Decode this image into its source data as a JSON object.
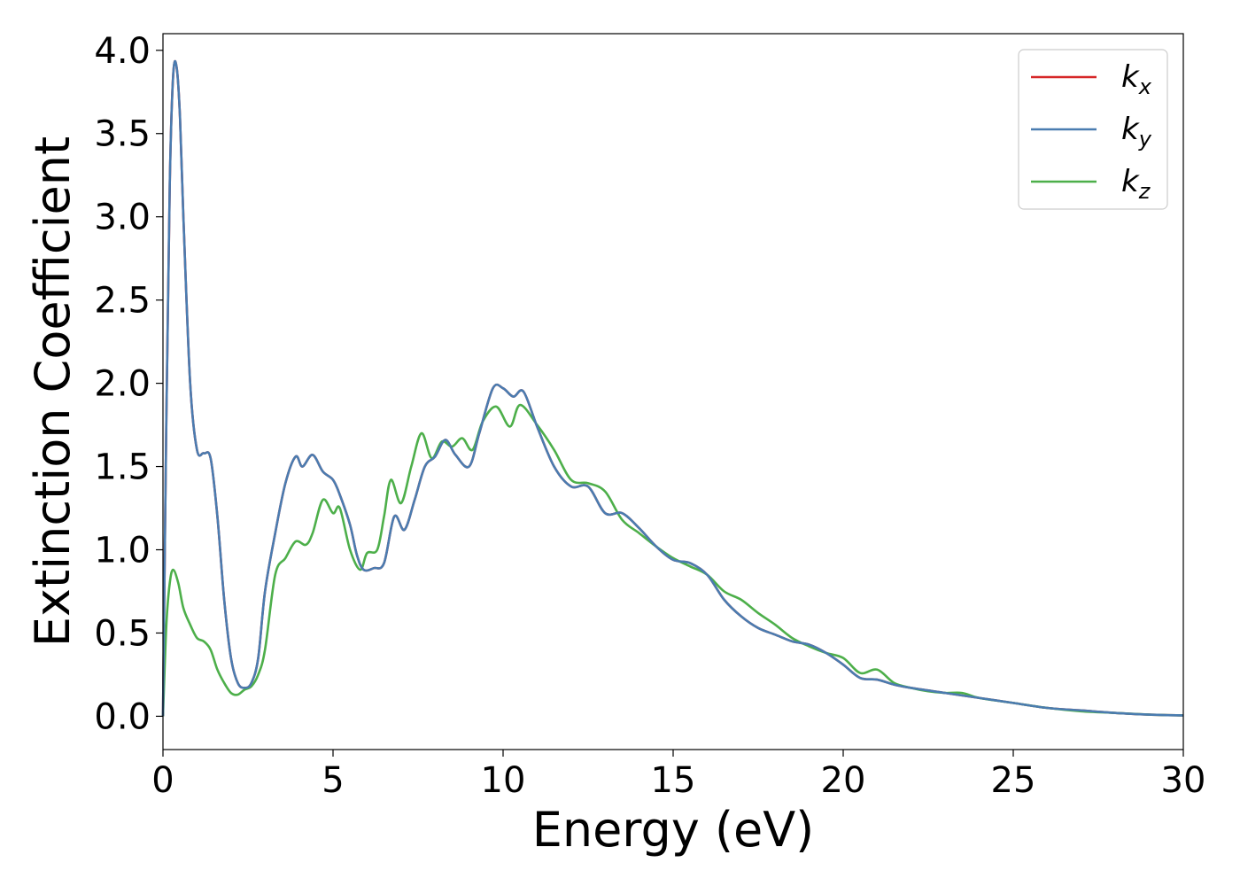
{
  "chart_data": {
    "type": "line",
    "xlabel": "Energy (eV)",
    "ylabel": "Extinction Coefficient",
    "xlim": [
      0,
      30
    ],
    "ylim": [
      -0.2,
      4.1
    ],
    "xticks": [
      0,
      5,
      10,
      15,
      20,
      25,
      30
    ],
    "xtick_labels": [
      "0",
      "5",
      "10",
      "15",
      "20",
      "25",
      "30"
    ],
    "yticks": [
      0.0,
      0.5,
      1.0,
      1.5,
      2.0,
      2.5,
      3.0,
      3.5,
      4.0
    ],
    "ytick_labels": [
      "0.0",
      "0.5",
      "1.0",
      "1.5",
      "2.0",
      "2.5",
      "3.0",
      "3.5",
      "4.0"
    ],
    "grid": false,
    "legend_position": "top-right",
    "series": [
      {
        "name": "k",
        "subscript": "x",
        "color": "#d62728",
        "x": [
          0,
          0.1,
          0.2,
          0.3,
          0.4,
          0.5,
          0.6,
          0.8,
          1.0,
          1.2,
          1.4,
          1.6,
          1.8,
          2.0,
          2.2,
          2.4,
          2.6,
          2.8,
          3.0,
          3.3,
          3.6,
          3.9,
          4.1,
          4.4,
          4.7,
          5.0,
          5.2,
          5.5,
          5.7,
          5.9,
          6.2,
          6.5,
          6.8,
          7.1,
          7.4,
          7.7,
          8.0,
          8.3,
          8.6,
          9.0,
          9.3,
          9.7,
          10.0,
          10.3,
          10.6,
          11.0,
          11.5,
          12.0,
          12.5,
          13.0,
          13.5,
          14.0,
          14.5,
          15.0,
          15.5,
          16.0,
          16.5,
          17.0,
          17.5,
          18.0,
          18.5,
          19.0,
          19.5,
          20.0,
          20.5,
          21.0,
          21.5,
          22.0,
          23.0,
          24.0,
          25.0,
          26.0,
          27.0,
          28.0,
          29.0,
          30.0
        ],
        "values": [
          0.0,
          1.8,
          3.2,
          3.85,
          3.9,
          3.6,
          3.0,
          2.0,
          1.6,
          1.58,
          1.55,
          1.2,
          0.7,
          0.35,
          0.2,
          0.17,
          0.2,
          0.35,
          0.75,
          1.1,
          1.4,
          1.56,
          1.5,
          1.57,
          1.47,
          1.42,
          1.33,
          1.15,
          0.97,
          0.88,
          0.89,
          0.92,
          1.2,
          1.12,
          1.3,
          1.5,
          1.56,
          1.66,
          1.57,
          1.5,
          1.7,
          1.97,
          1.97,
          1.92,
          1.95,
          1.74,
          1.5,
          1.38,
          1.38,
          1.22,
          1.22,
          1.13,
          1.02,
          0.94,
          0.92,
          0.85,
          0.7,
          0.6,
          0.53,
          0.49,
          0.45,
          0.43,
          0.38,
          0.31,
          0.23,
          0.22,
          0.19,
          0.17,
          0.14,
          0.11,
          0.08,
          0.05,
          0.035,
          0.02,
          0.01,
          0.005
        ]
      },
      {
        "name": "k",
        "subscript": "y",
        "color": "#4a7cb0",
        "x": [
          0,
          0.1,
          0.2,
          0.3,
          0.4,
          0.5,
          0.6,
          0.8,
          1.0,
          1.2,
          1.4,
          1.6,
          1.8,
          2.0,
          2.2,
          2.4,
          2.6,
          2.8,
          3.0,
          3.3,
          3.6,
          3.9,
          4.1,
          4.4,
          4.7,
          5.0,
          5.2,
          5.5,
          5.7,
          5.9,
          6.2,
          6.5,
          6.8,
          7.1,
          7.4,
          7.7,
          8.0,
          8.3,
          8.6,
          9.0,
          9.3,
          9.7,
          10.0,
          10.3,
          10.6,
          11.0,
          11.5,
          12.0,
          12.5,
          13.0,
          13.5,
          14.0,
          14.5,
          15.0,
          15.5,
          16.0,
          16.5,
          17.0,
          17.5,
          18.0,
          18.5,
          19.0,
          19.5,
          20.0,
          20.5,
          21.0,
          21.5,
          22.0,
          23.0,
          24.0,
          25.0,
          26.0,
          27.0,
          28.0,
          29.0,
          30.0
        ],
        "values": [
          0.0,
          1.8,
          3.2,
          3.85,
          3.9,
          3.6,
          3.0,
          2.0,
          1.6,
          1.58,
          1.55,
          1.2,
          0.7,
          0.35,
          0.2,
          0.17,
          0.2,
          0.35,
          0.75,
          1.1,
          1.4,
          1.56,
          1.5,
          1.57,
          1.47,
          1.42,
          1.33,
          1.15,
          0.97,
          0.88,
          0.89,
          0.92,
          1.2,
          1.12,
          1.3,
          1.5,
          1.56,
          1.66,
          1.57,
          1.5,
          1.7,
          1.97,
          1.97,
          1.92,
          1.95,
          1.74,
          1.5,
          1.38,
          1.38,
          1.22,
          1.22,
          1.13,
          1.02,
          0.94,
          0.92,
          0.85,
          0.7,
          0.6,
          0.53,
          0.49,
          0.45,
          0.43,
          0.38,
          0.31,
          0.23,
          0.22,
          0.19,
          0.17,
          0.14,
          0.11,
          0.08,
          0.05,
          0.035,
          0.02,
          0.01,
          0.005
        ]
      },
      {
        "name": "k",
        "subscript": "z",
        "color": "#4daf4a",
        "x": [
          0,
          0.1,
          0.2,
          0.3,
          0.45,
          0.6,
          0.8,
          1.0,
          1.2,
          1.4,
          1.6,
          1.8,
          2.0,
          2.2,
          2.4,
          2.6,
          2.8,
          3.0,
          3.3,
          3.6,
          3.9,
          4.2,
          4.4,
          4.7,
          5.0,
          5.2,
          5.5,
          5.8,
          6.0,
          6.3,
          6.5,
          6.7,
          7.0,
          7.3,
          7.6,
          7.9,
          8.2,
          8.5,
          8.8,
          9.1,
          9.4,
          9.8,
          10.2,
          10.5,
          11.0,
          11.5,
          12.0,
          12.5,
          13.0,
          13.5,
          14.0,
          14.5,
          15.0,
          15.5,
          16.0,
          16.5,
          17.0,
          17.5,
          18.0,
          18.5,
          19.0,
          19.5,
          20.0,
          20.5,
          21.0,
          21.5,
          22.0,
          22.5,
          23.0,
          23.5,
          24.0,
          25.0,
          26.0,
          27.0,
          28.0,
          29.0,
          30.0
        ],
        "values": [
          0.0,
          0.55,
          0.8,
          0.88,
          0.8,
          0.65,
          0.55,
          0.47,
          0.45,
          0.4,
          0.28,
          0.2,
          0.14,
          0.13,
          0.16,
          0.18,
          0.25,
          0.4,
          0.85,
          0.95,
          1.05,
          1.03,
          1.1,
          1.3,
          1.22,
          1.25,
          1.0,
          0.88,
          0.98,
          1.0,
          1.2,
          1.42,
          1.28,
          1.5,
          1.7,
          1.55,
          1.65,
          1.62,
          1.67,
          1.6,
          1.77,
          1.86,
          1.74,
          1.87,
          1.75,
          1.6,
          1.42,
          1.4,
          1.35,
          1.18,
          1.1,
          1.02,
          0.95,
          0.9,
          0.85,
          0.75,
          0.7,
          0.62,
          0.55,
          0.47,
          0.42,
          0.38,
          0.35,
          0.26,
          0.28,
          0.2,
          0.17,
          0.15,
          0.14,
          0.14,
          0.11,
          0.08,
          0.05,
          0.03,
          0.02,
          0.01,
          0.005
        ]
      }
    ]
  }
}
